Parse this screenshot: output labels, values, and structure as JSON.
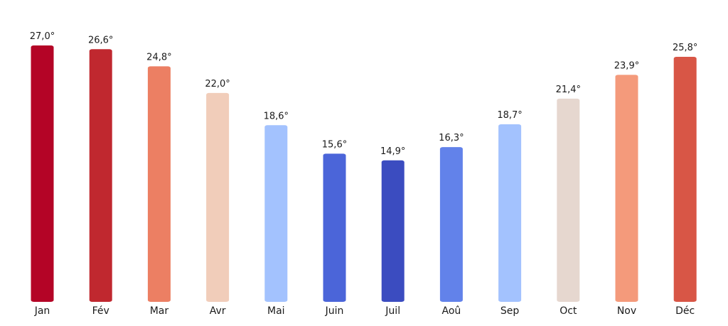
{
  "chart_data": {
    "type": "bar",
    "title": "",
    "xlabel": "",
    "ylabel": "",
    "categories": [
      "Jan",
      "Fév",
      "Mar",
      "Avr",
      "Mai",
      "Juin",
      "Juil",
      "Aoû",
      "Sep",
      "Oct",
      "Nov",
      "Déc"
    ],
    "values": [
      27.0,
      26.6,
      24.8,
      22.0,
      18.6,
      15.6,
      14.9,
      16.3,
      18.7,
      21.4,
      23.9,
      25.8
    ],
    "value_labels": [
      "27,0°",
      "26,6°",
      "24,8°",
      "22,0°",
      "18,6°",
      "15,6°",
      "14,9°",
      "16,3°",
      "18,7°",
      "21,4°",
      "23,9°",
      "25,8°"
    ],
    "colors": [
      "#b40426",
      "#c0282f",
      "#ec7f63",
      "#f1cdba",
      "#a3c2fe",
      "#4b65d9",
      "#3b4cc0",
      "#6282ea",
      "#a3c2fe",
      "#e6d7cf",
      "#f49a7b",
      "#d85646"
    ],
    "ylim": [
      0,
      27.0
    ],
    "grid": false,
    "legend": "none",
    "y_axis_visible": false
  }
}
